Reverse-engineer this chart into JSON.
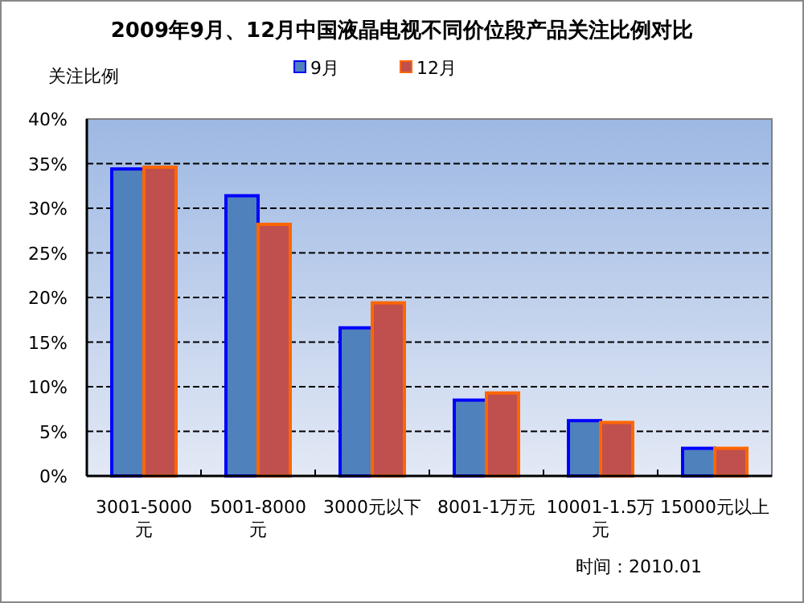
{
  "chart_data": {
    "type": "bar",
    "title": "2009年9月、12月中国液晶电视不同价位段产品关注比例对比",
    "ylabel": "关注比例",
    "categories": [
      "3001-5000元",
      "5001-8000元",
      "3000元以下",
      "8001-1万元",
      "10001-1.5万元",
      "15000元以上"
    ],
    "series": [
      {
        "name": "9月",
        "color": "#4f81bd",
        "values": [
          34.4,
          31.4,
          16.6,
          8.5,
          6.2,
          3.1
        ]
      },
      {
        "name": "12月",
        "color": "#c0504d",
        "values": [
          34.6,
          28.2,
          19.4,
          9.3,
          6.0,
          3.1
        ]
      }
    ],
    "ylim": [
      0,
      40
    ],
    "yticks": [
      {
        "value": 0,
        "label": "0%"
      },
      {
        "value": 5,
        "label": "5%"
      },
      {
        "value": 10,
        "label": "10%"
      },
      {
        "value": 15,
        "label": "15%"
      },
      {
        "value": 20,
        "label": "20%"
      },
      {
        "value": 25,
        "label": "25%"
      },
      {
        "value": 30,
        "label": "30%"
      },
      {
        "value": 35,
        "label": "35%"
      },
      {
        "value": 40,
        "label": "40%"
      }
    ],
    "grid": "y",
    "legend": "top",
    "annotations": [
      "时间：2010.01"
    ]
  }
}
